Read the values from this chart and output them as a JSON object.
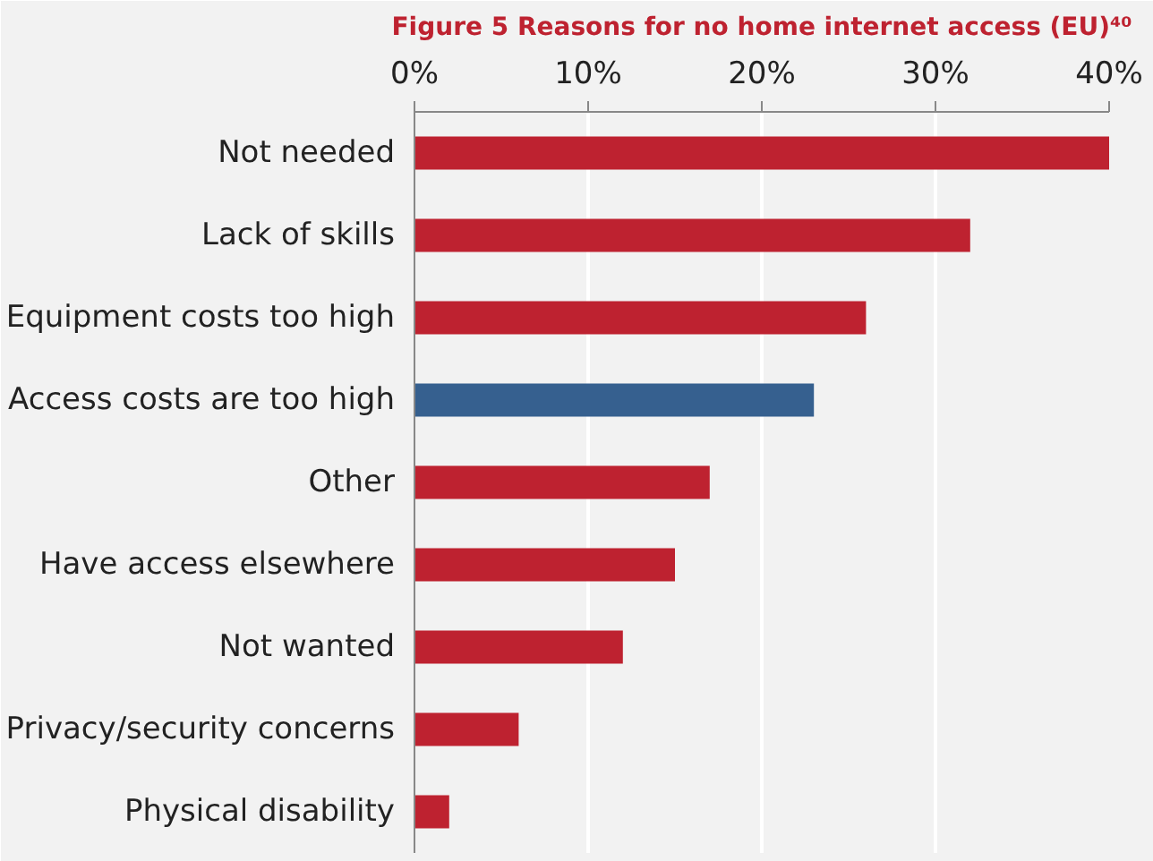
{
  "chart_data": {
    "type": "bar",
    "orientation": "horizontal",
    "title": "Figure 5 Reasons for no home internet access (EU)⁴⁰",
    "categories": [
      "Not needed",
      "Lack of skills",
      "Equipment costs too high",
      "Access costs are too high",
      "Other",
      "Have access elsewhere",
      "Not wanted",
      "Privacy/security concerns",
      "Physical disability"
    ],
    "values": [
      40,
      32,
      26,
      23,
      17,
      15,
      12,
      6,
      2
    ],
    "colors": [
      "#be2230",
      "#be2230",
      "#be2230",
      "#36608f",
      "#be2230",
      "#be2230",
      "#be2230",
      "#be2230",
      "#be2230"
    ],
    "xlim": [
      0,
      40
    ],
    "xticks": [
      {
        "value": 0,
        "label": "0%"
      },
      {
        "value": 10,
        "label": "10%"
      },
      {
        "value": 20,
        "label": "20%"
      },
      {
        "value": 30,
        "label": "30%"
      },
      {
        "value": 40,
        "label": "40%"
      }
    ],
    "grid": "x"
  }
}
